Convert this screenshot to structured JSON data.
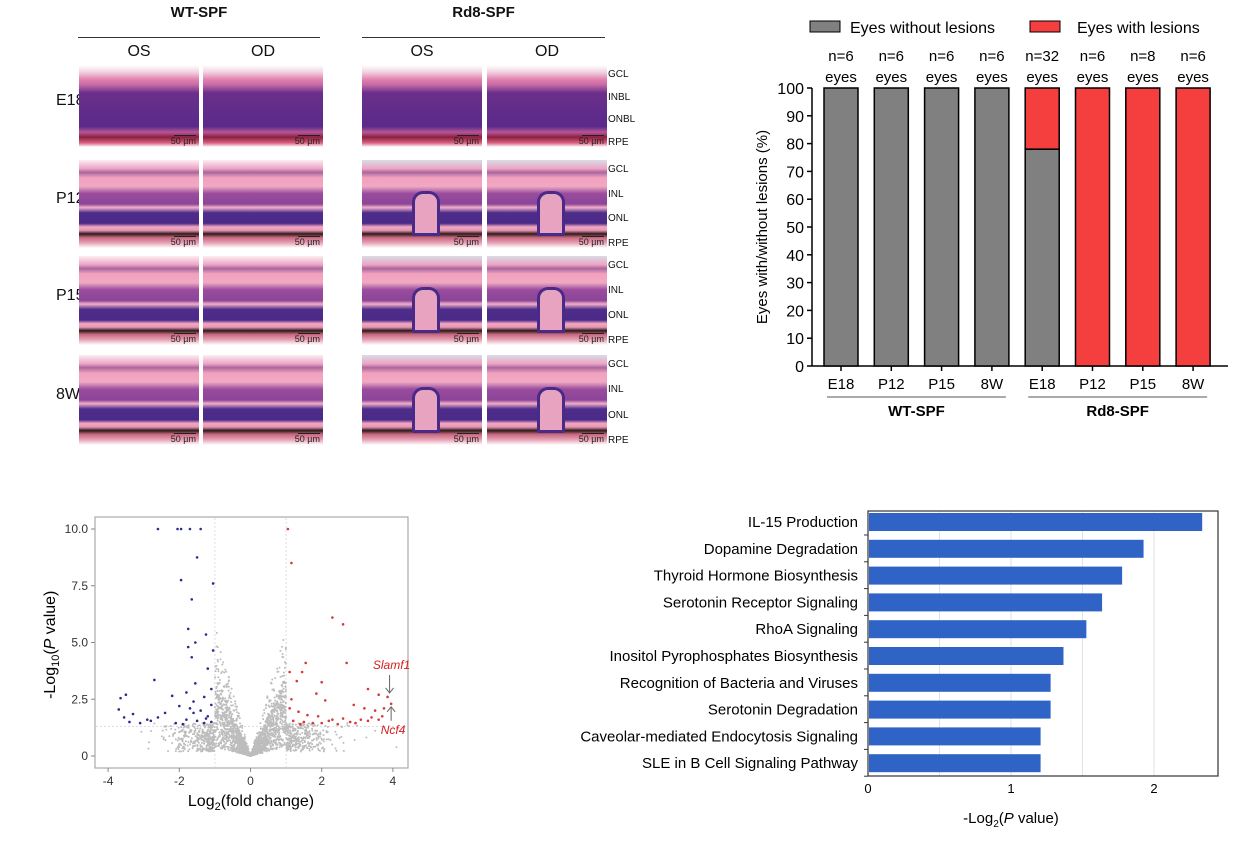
{
  "histology": {
    "groups": [
      "WT-SPF",
      "Rd8-SPF"
    ],
    "eyes": [
      "OS",
      "OD"
    ],
    "rows": [
      "E18",
      "P12",
      "P15",
      "8W"
    ],
    "scale_bar": "50 µm",
    "layers": [
      [
        "GCL",
        "INBL",
        "ONBL",
        "RPE"
      ],
      [
        "GCL",
        "INL",
        "ONL",
        "RPE"
      ],
      [
        "GCL",
        "INL",
        "ONL",
        "RPE"
      ],
      [
        "GCL",
        "INL",
        "ONL",
        "RPE"
      ]
    ]
  },
  "chart_data": [
    {
      "type": "bar",
      "stacked": true,
      "ylabel": "Eyes with/without lesions (%)",
      "ylim": [
        0,
        100
      ],
      "yticks": [
        0,
        10,
        20,
        30,
        40,
        50,
        60,
        70,
        80,
        90,
        100
      ],
      "categories": [
        "E18",
        "P12",
        "P15",
        "8W",
        "E18",
        "P12",
        "P15",
        "8W"
      ],
      "groups": [
        {
          "label": "WT-SPF",
          "span": [
            0,
            3
          ]
        },
        {
          "label": "Rd8-SPF",
          "span": [
            4,
            7
          ]
        }
      ],
      "n_labels": [
        "n=6",
        "n=6",
        "n=6",
        "n=6",
        "n=32",
        "n=6",
        "n=8",
        "n=6"
      ],
      "n_unit": "eyes",
      "legend_placement": "top",
      "series": [
        {
          "name": "Eyes without lesions",
          "color": "#808080",
          "values": [
            100,
            100,
            100,
            100,
            78,
            0,
            0,
            0
          ]
        },
        {
          "name": "Eyes with lesions",
          "color": "#f53f3f",
          "values": [
            0,
            0,
            0,
            0,
            22,
            100,
            100,
            100
          ]
        }
      ]
    },
    {
      "type": "scatter",
      "xlabel": "Log2(fold change)",
      "ylabel": "-Log10(P value)",
      "xlim": [
        -4.3,
        4.5
      ],
      "ylim": [
        -0.4,
        10.5
      ],
      "xticks": [
        -4,
        -2,
        0,
        2,
        4
      ],
      "yticks": [
        "0",
        "2.5",
        "5.0",
        "7.5",
        "10.0"
      ],
      "thresholds": {
        "x": [
          -1,
          1
        ],
        "y": 1.3
      },
      "grid": true,
      "colors": {
        "down": "#2b2b8f",
        "up": "#d43a3a",
        "ns": "#bdbdbd"
      },
      "down": [
        [
          -2.6,
          10
        ],
        [
          -2.05,
          10
        ],
        [
          -1.95,
          10
        ],
        [
          -1.7,
          10
        ],
        [
          -1.4,
          10
        ],
        [
          -1.5,
          8.75
        ],
        [
          -1.95,
          7.75
        ],
        [
          -1.05,
          7.6
        ],
        [
          -1.65,
          6.9
        ],
        [
          -1.75,
          5.6
        ],
        [
          -1.25,
          5.35
        ],
        [
          -1.75,
          4.8
        ],
        [
          -1.55,
          5
        ],
        [
          -1.65,
          4.35
        ],
        [
          -1.05,
          4.65
        ],
        [
          -1.2,
          3.85
        ],
        [
          -2.7,
          3.35
        ],
        [
          -1.55,
          3.2
        ],
        [
          -1.1,
          2.95
        ],
        [
          -3.5,
          2.7
        ],
        [
          -2.2,
          2.65
        ],
        [
          -3.65,
          2.55
        ],
        [
          -1.3,
          2.6
        ],
        [
          -1.8,
          2.8
        ],
        [
          -1.6,
          2.4
        ],
        [
          -1.1,
          2.25
        ],
        [
          -3.7,
          2.05
        ],
        [
          -3.3,
          1.85
        ],
        [
          -2.9,
          1.6
        ],
        [
          -2.4,
          1.9
        ],
        [
          -2,
          2.2
        ],
        [
          -1.7,
          2.1
        ],
        [
          -1.4,
          2
        ],
        [
          -1.2,
          1.75
        ],
        [
          -3.4,
          1.5
        ],
        [
          -3.1,
          1.45
        ],
        [
          -2.6,
          1.7
        ],
        [
          -2.1,
          1.45
        ],
        [
          -1.8,
          1.6
        ],
        [
          -1.5,
          1.55
        ],
        [
          -1.3,
          1.45
        ],
        [
          -1.1,
          1.5
        ],
        [
          -3.55,
          1.7
        ],
        [
          -2.8,
          1.55
        ],
        [
          -1.9,
          1.4
        ],
        [
          -1.6,
          1.9
        ],
        [
          -1.25,
          1.65
        ]
      ],
      "up": [
        [
          1.05,
          10
        ],
        [
          1.15,
          8.5
        ],
        [
          2.3,
          6.1
        ],
        [
          2.6,
          5.8
        ],
        [
          2.7,
          4.1
        ],
        [
          1.55,
          4.1
        ],
        [
          1.45,
          3.7
        ],
        [
          1.1,
          3.7
        ],
        [
          2.0,
          3.25
        ],
        [
          1.3,
          3.3
        ],
        [
          1.85,
          2.75
        ],
        [
          3.3,
          2.95
        ],
        [
          3.6,
          2.7
        ],
        [
          3.85,
          2.6
        ],
        [
          3.95,
          2.3
        ],
        [
          1.15,
          2.5
        ],
        [
          2.1,
          2.45
        ],
        [
          1.1,
          2.1
        ],
        [
          2.9,
          2.25
        ],
        [
          3.2,
          2.1
        ],
        [
          3.5,
          2.0
        ],
        [
          3.75,
          2.1
        ],
        [
          1.35,
          1.95
        ],
        [
          1.6,
          1.8
        ],
        [
          1.9,
          1.75
        ],
        [
          2.3,
          1.6
        ],
        [
          2.6,
          1.65
        ],
        [
          2.8,
          1.5
        ],
        [
          3.1,
          1.6
        ],
        [
          3.4,
          1.7
        ],
        [
          3.7,
          1.75
        ],
        [
          1.2,
          1.55
        ],
        [
          1.5,
          1.5
        ],
        [
          1.75,
          1.45
        ],
        [
          2.0,
          1.45
        ],
        [
          2.45,
          1.4
        ],
        [
          2.95,
          1.45
        ],
        [
          3.3,
          1.55
        ],
        [
          3.6,
          1.6
        ],
        [
          1.4,
          1.4
        ],
        [
          2.2,
          1.55
        ]
      ],
      "annotations": [
        {
          "label": "Slamf1",
          "x": 3.85,
          "y": 2.6,
          "color": "#d42020"
        },
        {
          "label": "Ncf4",
          "x": 3.95,
          "y": 2.3,
          "color": "#d42020"
        }
      ]
    },
    {
      "type": "bar",
      "orientation": "horizontal",
      "xlabel": "-Log2(P value)",
      "xlim": [
        0,
        2.45
      ],
      "xticks": [
        0,
        1,
        2
      ],
      "grid": true,
      "color": "#2f63c6",
      "categories": [
        "IL-15 Production",
        "Dopamine Degradation",
        "Thyroid Hormone Biosynthesis",
        "Serotonin Receptor Signaling",
        "RhoA Signaling",
        "Inositol Pyrophosphates Biosynthesis",
        "Recognition of Bacteria and Viruses",
        "Serotonin Degradation",
        "Caveolar-mediated Endocytosis Signaling",
        "SLE in B Cell Signaling Pathway"
      ],
      "values": [
        2.33,
        1.92,
        1.77,
        1.63,
        1.52,
        1.36,
        1.27,
        1.27,
        1.2,
        1.2
      ]
    }
  ]
}
